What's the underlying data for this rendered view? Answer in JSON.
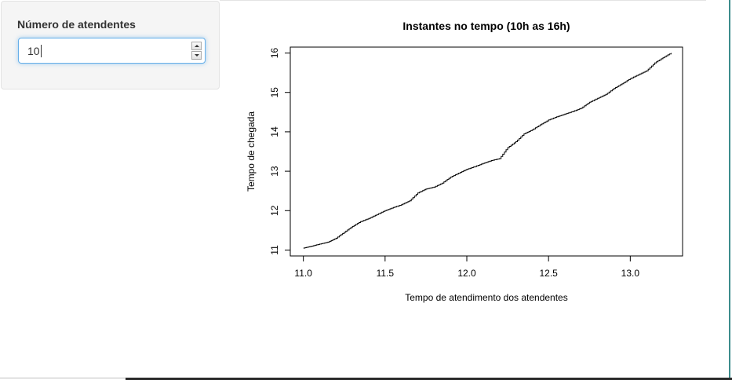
{
  "sidebar": {
    "input_label": "Número de atendentes",
    "input_value": "10"
  },
  "chart_data": {
    "type": "line",
    "title": "Instantes no tempo (10h as 16h)",
    "xlabel": "Tempo de atendimento dos atendentes",
    "ylabel": "Tempo de chegada",
    "xlim": [
      10.92,
      13.32
    ],
    "ylim": [
      10.85,
      16.15
    ],
    "xticks": [
      11.0,
      11.5,
      12.0,
      12.5,
      13.0
    ],
    "xtick_labels": [
      "11.0",
      "11.5",
      "12.0",
      "12.5",
      "13.0"
    ],
    "yticks": [
      11,
      12,
      13,
      14,
      15,
      16
    ],
    "ytick_labels": [
      "11",
      "12",
      "13",
      "14",
      "15",
      "16"
    ],
    "grid": false,
    "series": [
      {
        "x": [
          11.0,
          11.05,
          11.1,
          11.15,
          11.2,
          11.25,
          11.3,
          11.35,
          11.4,
          11.45,
          11.5,
          11.55,
          11.6,
          11.65,
          11.7,
          11.75,
          11.8,
          11.85,
          11.9,
          11.95,
          12.0,
          12.05,
          12.1,
          12.15,
          12.2,
          12.25,
          12.3,
          12.35,
          12.4,
          12.45,
          12.5,
          12.55,
          12.6,
          12.65,
          12.7,
          12.75,
          12.8,
          12.85,
          12.9,
          12.95,
          13.0,
          13.05,
          13.1,
          13.15,
          13.2,
          13.25
        ],
        "y": [
          11.05,
          11.1,
          11.15,
          11.2,
          11.3,
          11.45,
          11.6,
          11.72,
          11.8,
          11.9,
          12.0,
          12.08,
          12.15,
          12.25,
          12.45,
          12.55,
          12.6,
          12.7,
          12.85,
          12.95,
          13.05,
          13.12,
          13.2,
          13.27,
          13.32,
          13.6,
          13.75,
          13.95,
          14.05,
          14.18,
          14.3,
          14.38,
          14.45,
          14.52,
          14.6,
          14.75,
          14.85,
          14.95,
          15.1,
          15.22,
          15.35,
          15.45,
          15.55,
          15.75,
          15.88,
          16.0
        ]
      }
    ]
  }
}
